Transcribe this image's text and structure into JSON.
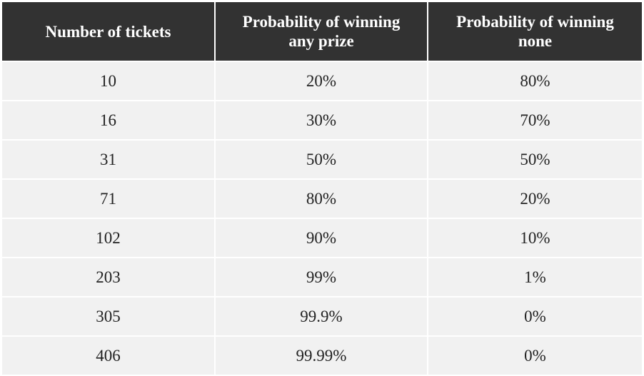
{
  "table": {
    "headers": [
      "Number of tickets",
      "Probability of winning\nany prize",
      "Probability of winning\nnone"
    ],
    "rows": [
      [
        "10",
        "20%",
        "80%"
      ],
      [
        "16",
        "30%",
        "70%"
      ],
      [
        "31",
        "50%",
        "50%"
      ],
      [
        "71",
        "80%",
        "20%"
      ],
      [
        "102",
        "90%",
        "10%"
      ],
      [
        "203",
        "99%",
        "1%"
      ],
      [
        "305",
        "99.9%",
        "0%"
      ],
      [
        "406",
        "99.99%",
        "0%"
      ]
    ]
  },
  "colors": {
    "header_bg": "#323232",
    "header_text": "#ffffff",
    "cell_bg": "#f1f1f1",
    "cell_text": "#222222"
  }
}
